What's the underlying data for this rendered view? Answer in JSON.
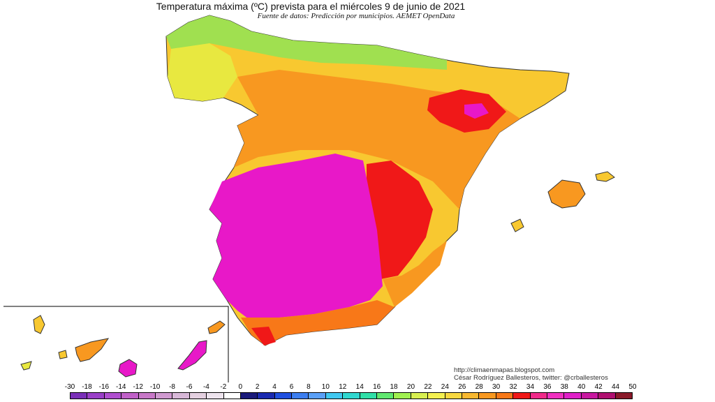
{
  "header": {
    "title": "Temperatura máxima (ºC) prevista para el miércoles 9 de junio de 2021",
    "subtitle": "Fuente de datos: Predicción por municipios. AEMET OpenData"
  },
  "credits": {
    "url": "http://climaenmapas.blogspot.com",
    "author": "César Rodríguez Ballesteros, twitter: @crballesteros"
  },
  "legend": {
    "labels": [
      "-30",
      "-18",
      "-16",
      "-14",
      "-12",
      "-10",
      "-8",
      "-6",
      "-4",
      "-2",
      "0",
      "2",
      "4",
      "6",
      "8",
      "10",
      "12",
      "14",
      "16",
      "18",
      "20",
      "22",
      "24",
      "26",
      "28",
      "30",
      "32",
      "34",
      "36",
      "38",
      "40",
      "42",
      "44",
      "50"
    ],
    "colors": [
      "#7a2fb8",
      "#9a3fc8",
      "#b04fd0",
      "#c060c8",
      "#c878c8",
      "#d09ad0",
      "#d8b8d8",
      "#e4d0e0",
      "#eee4ee",
      "#ffffff",
      "#1a1a7a",
      "#1a2ab0",
      "#2050e0",
      "#3c7ef0",
      "#5aa0f8",
      "#40c8f0",
      "#30d8d0",
      "#30e0a8",
      "#60e870",
      "#a0f050",
      "#d8f050",
      "#f4f050",
      "#f8d840",
      "#f8b830",
      "#f89820",
      "#f87818",
      "#f01818",
      "#f02a8a",
      "#f030c0",
      "#e020c8",
      "#c818a0",
      "#b01070",
      "#8a1a2a"
    ]
  },
  "map": {
    "colors": {
      "extreme": "#e818c8",
      "very_hot": "#f01818",
      "hot": "#f87818",
      "warm": "#f89820",
      "mild": "#f8c830",
      "cool": "#e8e840",
      "fresh": "#a0e050"
    }
  }
}
